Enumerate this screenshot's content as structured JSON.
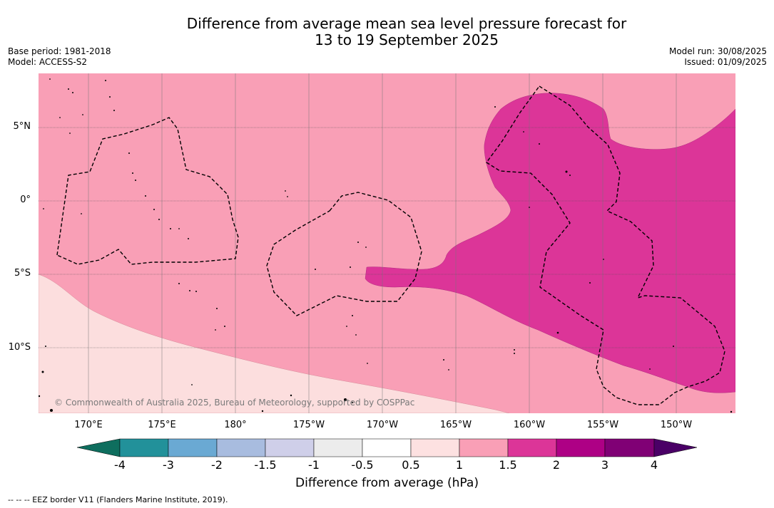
{
  "header": {
    "title_line1": "Difference from average mean sea level pressure forecast for",
    "title_line2": "13 to 19 September 2025",
    "base_period": "Base period: 1981-2018",
    "model": "Model: ACCESS-S2",
    "model_run": "Model run: 30/08/2025",
    "issued": "Issued: 01/09/2025"
  },
  "map": {
    "lat_labels": [
      "5°N",
      "0°",
      "5°S",
      "10°S"
    ],
    "lon_labels": [
      "170°E",
      "175°E",
      "180°",
      "175°W",
      "170°W",
      "165°W",
      "160°W",
      "155°W",
      "150°W"
    ],
    "copyright": "© Commonwealth of Australia 2025, Bureau of Meteorology, supported by COSPPac",
    "colors": {
      "band_0_5_1": "#fcdede",
      "band_1_1_5": "#f99fb6",
      "band_1_5_2": "#dc3598"
    }
  },
  "colorbar": {
    "ticks": [
      "-4",
      "-3",
      "-2",
      "-1.5",
      "-1",
      "-0.5",
      "0.5",
      "1",
      "1.5",
      "2",
      "3",
      "4"
    ],
    "colors": [
      "#0e6e5e",
      "#22919a",
      "#6aa9d3",
      "#a8bcdf",
      "#cfcfe9",
      "#ececec",
      "#ffffff",
      "#fde1e1",
      "#f99fb6",
      "#dc3598",
      "#ae0085",
      "#800075",
      "#4a0066"
    ],
    "label": "Difference from average (hPa)"
  },
  "footnote": "--  --  -- EEZ border V11 (Flanders Marine Institute, 2019)."
}
